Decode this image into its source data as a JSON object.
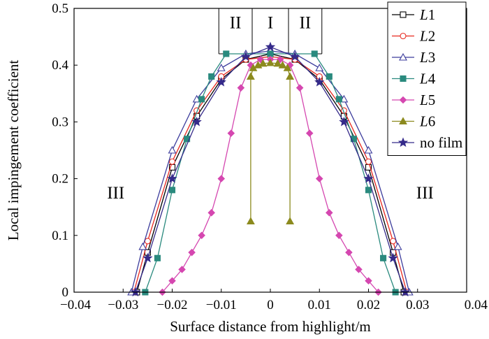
{
  "chart_data": {
    "type": "line",
    "title": "",
    "xlabel": "Surface distance from highlight/m",
    "ylabel": "Local impingement coefficient",
    "xlim": [
      -0.04,
      0.04
    ],
    "ylim": [
      0,
      0.5
    ],
    "xticks": [
      -0.04,
      -0.03,
      -0.02,
      -0.01,
      0,
      0.01,
      0.02,
      0.03,
      0.04
    ],
    "yticks": [
      0,
      0.1,
      0.2,
      0.3,
      0.4,
      0.5
    ],
    "xtick_labels": [
      "−0.04",
      "−0.03",
      "−0.02",
      "−0.01",
      "0",
      "0.01",
      "0.02",
      "0.03",
      "0.04"
    ],
    "ytick_labels": [
      "0",
      "0.1",
      "0.2",
      "0.3",
      "0.4",
      "0.5"
    ],
    "regions": {
      "boundaries_x": [
        -0.0105,
        -0.0037,
        0.0037,
        0.0105
      ],
      "labels": [
        {
          "text": "II",
          "x": -0.0071,
          "y": 0.465
        },
        {
          "text": "I",
          "x": 0.0,
          "y": 0.465
        },
        {
          "text": "II",
          "x": 0.0071,
          "y": 0.465
        },
        {
          "text": "III",
          "x": -0.0315,
          "y": 0.165
        },
        {
          "text": "III",
          "x": 0.0315,
          "y": 0.165
        }
      ]
    },
    "legend": {
      "position": "top-right",
      "entries": [
        {
          "prefix": "L",
          "suffix": "1",
          "italic": true
        },
        {
          "prefix": "L",
          "suffix": "2",
          "italic": true
        },
        {
          "prefix": "L",
          "suffix": "3",
          "italic": true
        },
        {
          "prefix": "L",
          "suffix": "4",
          "italic": true
        },
        {
          "prefix": "L",
          "suffix": "5",
          "italic": true
        },
        {
          "prefix": "L",
          "suffix": "6",
          "italic": true
        },
        {
          "prefix": "no film",
          "suffix": "",
          "italic": false
        }
      ]
    },
    "series": [
      {
        "name": "L1",
        "color": "#000000",
        "marker": "square-open",
        "x": [
          -0.0272,
          -0.025,
          -0.02,
          -0.015,
          -0.01,
          -0.005,
          0,
          0.005,
          0.01,
          0.015,
          0.02,
          0.025,
          0.0272
        ],
        "y": [
          0,
          0.07,
          0.22,
          0.31,
          0.375,
          0.41,
          0.42,
          0.41,
          0.375,
          0.31,
          0.22,
          0.07,
          0
        ]
      },
      {
        "name": "L2",
        "color": "#e8281e",
        "marker": "circle-open",
        "x": [
          -0.0278,
          -0.025,
          -0.02,
          -0.015,
          -0.01,
          -0.005,
          0,
          0.005,
          0.01,
          0.015,
          0.02,
          0.025,
          0.0278
        ],
        "y": [
          0,
          0.09,
          0.23,
          0.32,
          0.38,
          0.41,
          0.415,
          0.41,
          0.38,
          0.32,
          0.23,
          0.09,
          0
        ]
      },
      {
        "name": "L3",
        "color": "#3c3c9c",
        "marker": "triangle-open",
        "x": [
          -0.0283,
          -0.026,
          -0.02,
          -0.015,
          -0.01,
          -0.005,
          0,
          0.005,
          0.01,
          0.015,
          0.02,
          0.026,
          0.0283
        ],
        "y": [
          0,
          0.08,
          0.25,
          0.34,
          0.395,
          0.42,
          0.425,
          0.42,
          0.395,
          0.34,
          0.25,
          0.08,
          0
        ]
      },
      {
        "name": "L4",
        "color": "#2a8a7e",
        "marker": "square-filled",
        "x": [
          -0.0255,
          -0.023,
          -0.02,
          -0.017,
          -0.014,
          -0.012,
          -0.009,
          0,
          0.009,
          0.012,
          0.014,
          0.017,
          0.02,
          0.023,
          0.0255
        ],
        "y": [
          0,
          0.06,
          0.18,
          0.27,
          0.34,
          0.38,
          0.42,
          0.42,
          0.42,
          0.38,
          0.34,
          0.27,
          0.18,
          0.06,
          0
        ]
      },
      {
        "name": "L5",
        "color": "#d547b0",
        "marker": "diamond-filled",
        "x": [
          -0.022,
          -0.02,
          -0.018,
          -0.016,
          -0.014,
          -0.012,
          -0.01,
          -0.008,
          -0.006,
          -0.004,
          -0.002,
          0,
          0.002,
          0.004,
          0.006,
          0.008,
          0.01,
          0.012,
          0.014,
          0.016,
          0.018,
          0.02,
          0.022
        ],
        "y": [
          0,
          0.02,
          0.04,
          0.07,
          0.1,
          0.14,
          0.2,
          0.28,
          0.36,
          0.4,
          0.41,
          0.41,
          0.41,
          0.4,
          0.36,
          0.28,
          0.2,
          0.14,
          0.1,
          0.07,
          0.04,
          0.02,
          0
        ]
      },
      {
        "name": "L6",
        "color": "#8c8a1e",
        "marker": "triangle-filled",
        "x": [
          -0.004,
          -0.004,
          -0.0035,
          -0.0025,
          -0.0015,
          0,
          0.0015,
          0.0025,
          0.0035,
          0.004,
          0.004
        ],
        "y": [
          0.125,
          0.38,
          0.395,
          0.4,
          0.403,
          0.404,
          0.403,
          0.4,
          0.395,
          0.38,
          0.125
        ]
      },
      {
        "name": "no film",
        "color": "#352a8a",
        "marker": "star-filled",
        "x": [
          -0.0275,
          -0.025,
          -0.02,
          -0.015,
          -0.01,
          -0.005,
          0,
          0.005,
          0.01,
          0.015,
          0.02,
          0.025,
          0.0275
        ],
        "y": [
          0,
          0.06,
          0.2,
          0.3,
          0.37,
          0.415,
          0.432,
          0.415,
          0.37,
          0.3,
          0.2,
          0.06,
          0
        ]
      }
    ]
  }
}
